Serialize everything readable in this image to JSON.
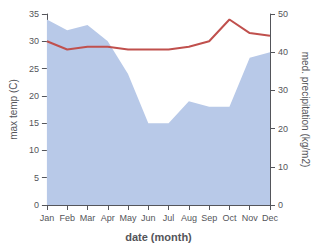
{
  "chart_data": {
    "type": "line",
    "xlabel": "date (month)",
    "ylabel": "max temp (C)",
    "y2label": "med. precipitation (kg/m2)",
    "categories": [
      "Jan",
      "Feb",
      "Mar",
      "Apr",
      "May",
      "Jun",
      "Jul",
      "Aug",
      "Sep",
      "Oct",
      "Nov",
      "Dec"
    ],
    "series": [
      {
        "type": "area",
        "color": "#b8c9e8",
        "values": [
          34,
          32,
          33,
          30,
          24,
          15,
          15,
          19,
          18,
          18,
          27,
          28
        ]
      },
      {
        "type": "line",
        "color": "#c0504d",
        "values": [
          30.0,
          28.5,
          29.0,
          29.0,
          28.5,
          28.5,
          28.5,
          29.0,
          30.0,
          34.0,
          31.5,
          31.0
        ]
      }
    ],
    "ylim": [
      0,
      35
    ],
    "yticks": [
      0,
      5,
      10,
      15,
      20,
      25,
      30,
      35
    ],
    "y2lim": [
      0,
      50
    ],
    "y2ticks": [
      0,
      10,
      20,
      30,
      40,
      50
    ],
    "grid": false
  }
}
